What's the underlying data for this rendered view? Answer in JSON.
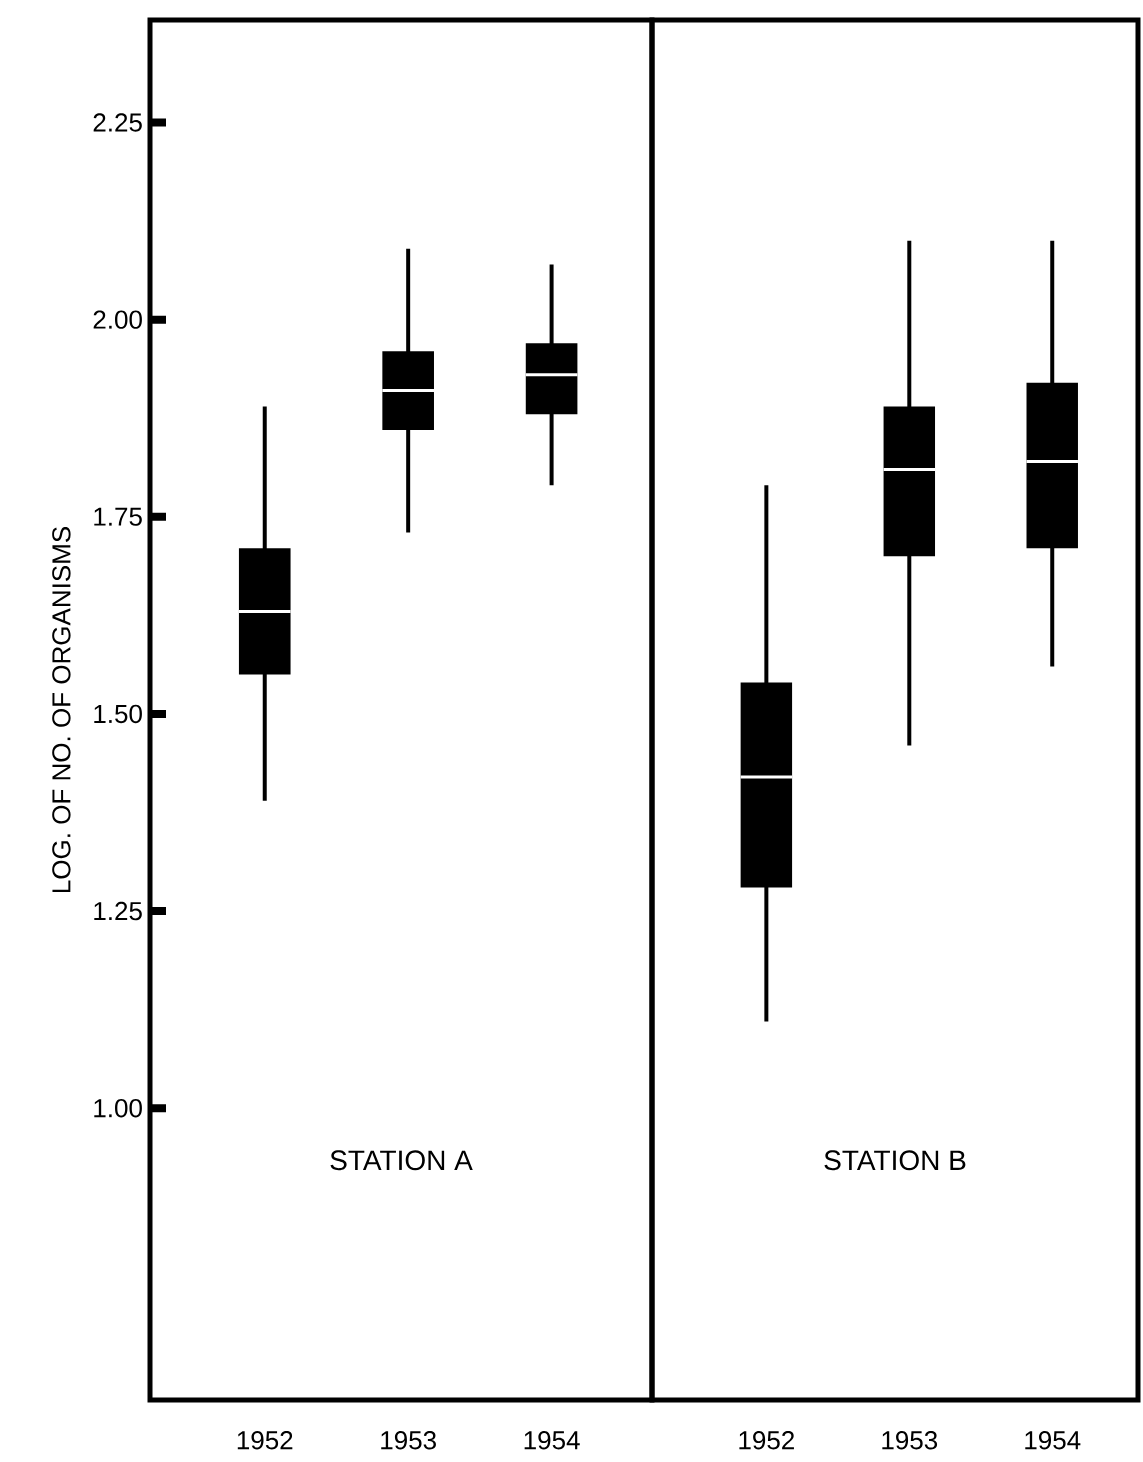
{
  "chart_data": [
    {
      "type": "box",
      "title": "STATION A",
      "ylabel": "LOG. OF NO. OF ORGANISMS",
      "categories": [
        "1952",
        "1953",
        "1954"
      ],
      "color": "#000000",
      "boxes": [
        {
          "low": 1.39,
          "q1": 1.55,
          "median": 1.63,
          "q3": 1.71,
          "high": 1.89
        },
        {
          "low": 1.73,
          "q1": 1.86,
          "median": 1.91,
          "q3": 1.96,
          "high": 2.09
        },
        {
          "low": 1.79,
          "q1": 1.88,
          "median": 1.93,
          "q3": 1.97,
          "high": 2.07
        }
      ],
      "ylim": [
        0.63,
        2.38
      ],
      "yticks": [
        {
          "value": 1,
          "label": "1.00"
        },
        {
          "value": 1.25,
          "label": "1.25"
        },
        {
          "value": 1.5,
          "label": "1.50"
        },
        {
          "value": 1.75,
          "label": "1.75"
        },
        {
          "value": 2,
          "label": "2.00"
        },
        {
          "value": 2.25,
          "label": "2.25"
        }
      ]
    },
    {
      "type": "box",
      "title": "STATION B",
      "categories": [
        "1952",
        "1953",
        "1954"
      ],
      "color": "#000000",
      "tick_labels": "x",
      "boxes": [
        {
          "low": 1.11,
          "q1": 1.28,
          "median": 1.42,
          "q3": 1.54,
          "high": 1.79
        },
        {
          "low": 1.46,
          "q1": 1.7,
          "median": 1.81,
          "q3": 1.89,
          "high": 2.1
        },
        {
          "low": 1.56,
          "q1": 1.71,
          "median": 1.82,
          "q3": 1.92,
          "high": 2.1
        }
      ],
      "ylim": [
        0.63,
        2.38
      ]
    }
  ]
}
